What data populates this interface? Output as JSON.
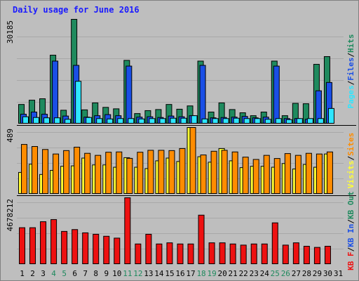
{
  "title": "Daily usage for June 2016",
  "colors": {
    "background": "#bebebe",
    "title": "#1a1aff",
    "hits": "#1f8a5e",
    "files": "#1a4fe6",
    "pages": "#2ee6ff",
    "visits": "#ffff33",
    "sites": "#ff8c00",
    "kbf": "#ee1111",
    "weekend_label": "#1f8a5e",
    "weekday_label": "#000000",
    "separator": "#000000"
  },
  "chart_data": [
    {
      "type": "bar",
      "panel": "hits-files-pages",
      "ymax_label": "30185",
      "ymax": 30185,
      "legend": [
        {
          "text": "Pages",
          "color": "#2ee6ff"
        },
        {
          "text": "/",
          "color": "#000000"
        },
        {
          "text": "Files",
          "color": "#1a4fe6"
        },
        {
          "text": "/",
          "color": "#000000"
        },
        {
          "text": "Hits",
          "color": "#1f8a5e"
        }
      ],
      "categories": [
        "1",
        "2",
        "3",
        "4",
        "5",
        "6",
        "7",
        "8",
        "9",
        "10",
        "11",
        "12",
        "13",
        "14",
        "15",
        "16",
        "17",
        "18",
        "19",
        "20",
        "21",
        "22",
        "23",
        "24",
        "25",
        "26",
        "27",
        "28",
        "29",
        "30",
        "31"
      ],
      "series": [
        {
          "name": "Hits",
          "values": [
            5640,
            6870,
            7280,
            19850,
            3970,
            30185,
            4080,
            6090,
            4800,
            4380,
            18350,
            3010,
            3860,
            4170,
            5640,
            4270,
            5220,
            18140,
            3450,
            6090,
            4170,
            3240,
            2400,
            3450,
            18140,
            2400,
            5960,
            5850,
            17210,
            19440,
            0
          ]
        },
        {
          "name": "Files",
          "values": [
            2820,
            3450,
            2820,
            18140,
            2300,
            16910,
            1980,
            2400,
            2710,
            2400,
            16700,
            1980,
            2090,
            1880,
            2300,
            2090,
            2400,
            16910,
            1780,
            1880,
            1980,
            2190,
            1780,
            1980,
            16700,
            1570,
            1570,
            1360,
            9580,
            11980,
            0
          ]
        },
        {
          "name": "Pages",
          "values": [
            2090,
            1880,
            1780,
            1780,
            1360,
            12320,
            1880,
            1570,
            1460,
            1570,
            1570,
            1460,
            1570,
            1570,
            1670,
            1670,
            2400,
            1470,
            1570,
            1570,
            1670,
            1570,
            1570,
            1360,
            1570,
            1260,
            1570,
            1570,
            1570,
            4480,
            0
          ]
        }
      ]
    },
    {
      "type": "bar",
      "panel": "visits-sites",
      "ymax_label": "489",
      "ymax": 489,
      "legend": [
        {
          "text": "Visits",
          "color": "#ffff33"
        },
        {
          "text": "/",
          "color": "#000000"
        },
        {
          "text": "Sites",
          "color": "#ff8c00"
        }
      ],
      "categories": [
        "1",
        "2",
        "3",
        "4",
        "5",
        "6",
        "7",
        "8",
        "9",
        "10",
        "11",
        "12",
        "13",
        "14",
        "15",
        "16",
        "17",
        "18",
        "19",
        "20",
        "21",
        "22",
        "23",
        "24",
        "25",
        "26",
        "27",
        "28",
        "29",
        "30",
        "31"
      ],
      "series": [
        {
          "name": "Visits",
          "values": [
            160,
            220,
            145,
            175,
            205,
            208,
            265,
            215,
            215,
            198,
            268,
            198,
            188,
            245,
            265,
            240,
            489,
            275,
            235,
            335,
            245,
            195,
            205,
            205,
            198,
            225,
            185,
            218,
            198,
            295,
            0
          ]
        },
        {
          "name": "Sites",
          "values": [
            365,
            350,
            328,
            295,
            320,
            345,
            300,
            285,
            308,
            310,
            263,
            308,
            322,
            322,
            320,
            335,
            489,
            288,
            315,
            322,
            310,
            272,
            255,
            285,
            262,
            298,
            285,
            300,
            295,
            310,
            0
          ]
        }
      ]
    },
    {
      "type": "bar",
      "panel": "kbf-kbin-kbout",
      "ymax_label": "4678212",
      "ymax": 4678212,
      "legend": [
        {
          "text": "KB F",
          "color": "#ee1111"
        },
        {
          "text": "/",
          "color": "#000000"
        },
        {
          "text": "KB In",
          "color": "#1a4fe6"
        },
        {
          "text": "/",
          "color": "#000000"
        },
        {
          "text": "KB Out",
          "color": "#1f8a5e"
        }
      ],
      "categories": [
        "1",
        "2",
        "3",
        "4",
        "5",
        "6",
        "7",
        "8",
        "9",
        "10",
        "11",
        "12",
        "13",
        "14",
        "15",
        "16",
        "17",
        "18",
        "19",
        "20",
        "21",
        "22",
        "23",
        "24",
        "25",
        "26",
        "27",
        "28",
        "29",
        "30",
        "31"
      ],
      "series": [
        {
          "name": "KB F",
          "values": [
            2580000,
            2580000,
            3000000,
            3150000,
            2320000,
            2450000,
            2220000,
            2120000,
            1980000,
            1850000,
            4678212,
            1440000,
            2120000,
            1440000,
            1520000,
            1440000,
            1440000,
            3460000,
            1520000,
            1520000,
            1440000,
            1360000,
            1440000,
            1440000,
            2920000,
            1360000,
            1520000,
            1280000,
            1200000,
            1280000,
            0
          ]
        }
      ]
    }
  ],
  "x_labels": [
    {
      "text": "1",
      "weekend": false
    },
    {
      "text": "2",
      "weekend": false
    },
    {
      "text": "3",
      "weekend": false
    },
    {
      "text": "4",
      "weekend": true
    },
    {
      "text": "5",
      "weekend": true
    },
    {
      "text": "6",
      "weekend": false
    },
    {
      "text": "7",
      "weekend": false
    },
    {
      "text": "8",
      "weekend": false
    },
    {
      "text": "9",
      "weekend": false
    },
    {
      "text": "10",
      "weekend": false
    },
    {
      "text": "11",
      "weekend": true
    },
    {
      "text": "12",
      "weekend": true
    },
    {
      "text": "13",
      "weekend": false
    },
    {
      "text": "14",
      "weekend": false
    },
    {
      "text": "15",
      "weekend": false
    },
    {
      "text": "16",
      "weekend": false
    },
    {
      "text": "17",
      "weekend": false
    },
    {
      "text": "18",
      "weekend": true
    },
    {
      "text": "19",
      "weekend": true
    },
    {
      "text": "20",
      "weekend": false
    },
    {
      "text": "21",
      "weekend": false
    },
    {
      "text": "22",
      "weekend": false
    },
    {
      "text": "23",
      "weekend": false
    },
    {
      "text": "24",
      "weekend": false
    },
    {
      "text": "25",
      "weekend": true
    },
    {
      "text": "26",
      "weekend": true
    },
    {
      "text": "27",
      "weekend": false
    },
    {
      "text": "28",
      "weekend": false
    },
    {
      "text": "29",
      "weekend": false
    },
    {
      "text": "30",
      "weekend": false
    },
    {
      "text": "31",
      "weekend": false
    }
  ]
}
